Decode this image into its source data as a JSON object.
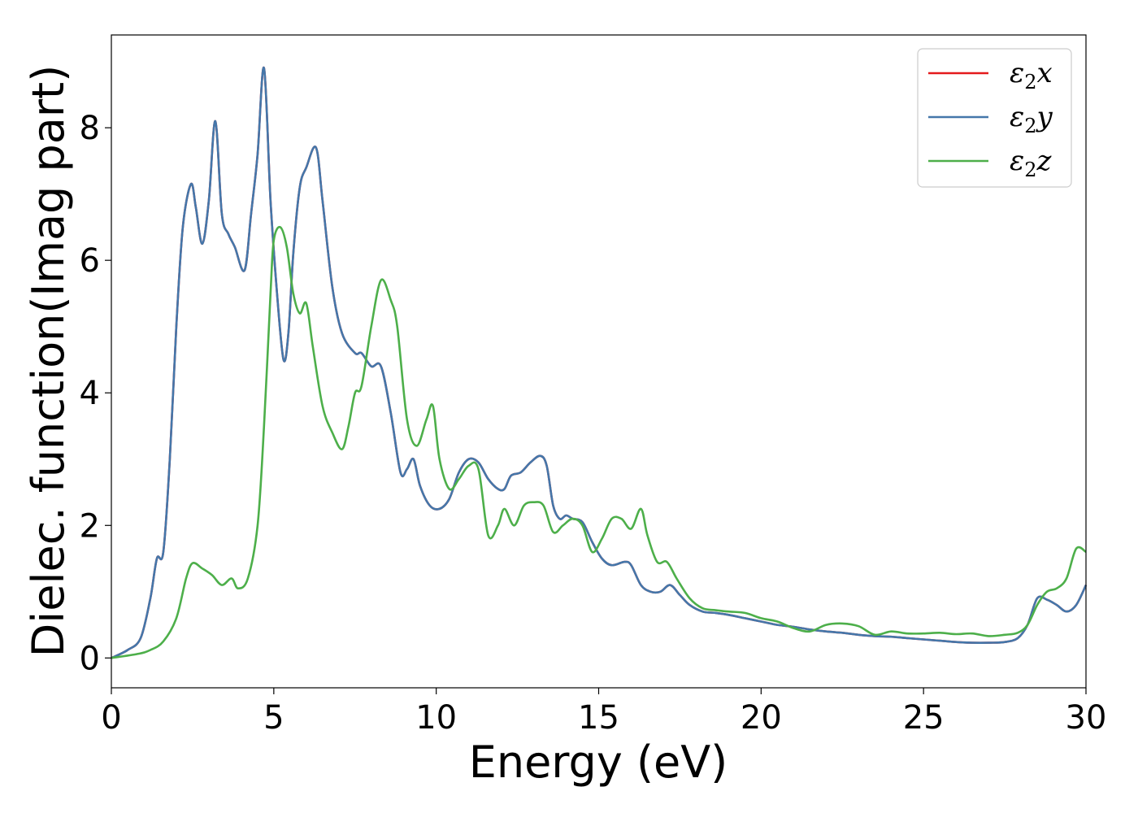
{
  "chart_data": {
    "type": "line",
    "title": "",
    "xlabel": "Energy (eV)",
    "ylabel": "Dielec. function(Imag part)",
    "xlim": [
      0,
      30
    ],
    "ylim": [
      -0.45,
      9.4
    ],
    "xticks": [
      0,
      5,
      10,
      15,
      20,
      25,
      30
    ],
    "yticks": [
      0,
      2,
      4,
      6,
      8
    ],
    "grid": false,
    "legend_position": "top-right",
    "series": [
      {
        "name": "ε2x",
        "sym": "ε",
        "sub": "2",
        "var": "x",
        "color": "#e41a1c",
        "x": [
          0,
          0.5,
          0.9,
          1.2,
          1.4,
          1.6,
          1.8,
          2.0,
          2.2,
          2.45,
          2.6,
          2.8,
          3.0,
          3.2,
          3.4,
          3.6,
          3.8,
          4.1,
          4.3,
          4.5,
          4.7,
          4.9,
          5.1,
          5.3,
          5.45,
          5.6,
          5.8,
          6.0,
          6.3,
          6.5,
          6.8,
          7.1,
          7.5,
          7.7,
          8.0,
          8.3,
          8.6,
          8.9,
          9.1,
          9.3,
          9.5,
          9.8,
          10.1,
          10.4,
          10.7,
          11.0,
          11.3,
          11.6,
          11.9,
          12.1,
          12.3,
          12.6,
          12.9,
          13.2,
          13.4,
          13.6,
          13.8,
          14.0,
          14.2,
          14.5,
          14.8,
          15.1,
          15.4,
          15.8,
          16.0,
          16.3,
          16.6,
          16.9,
          17.2,
          17.5,
          17.8,
          18.2,
          18.6,
          19.0,
          19.5,
          20.0,
          20.5,
          21.0,
          21.5,
          22.0,
          22.5,
          23.0,
          23.5,
          24.0,
          24.5,
          25.0,
          25.5,
          26.0,
          26.5,
          27.0,
          27.5,
          27.9,
          28.2,
          28.5,
          28.8,
          29.1,
          29.4,
          29.7,
          30.0
        ],
        "values": [
          0.0,
          0.12,
          0.3,
          0.9,
          1.5,
          1.6,
          3.0,
          5.0,
          6.5,
          7.15,
          6.8,
          6.25,
          6.9,
          8.1,
          6.7,
          6.4,
          6.2,
          5.85,
          6.7,
          7.6,
          8.9,
          6.9,
          5.5,
          4.5,
          4.9,
          6.1,
          7.1,
          7.4,
          7.7,
          6.9,
          5.6,
          4.9,
          4.6,
          4.6,
          4.4,
          4.4,
          3.7,
          2.8,
          2.85,
          3.0,
          2.6,
          2.3,
          2.25,
          2.4,
          2.8,
          3.0,
          2.95,
          2.7,
          2.55,
          2.55,
          2.75,
          2.8,
          2.95,
          3.05,
          2.9,
          2.3,
          2.1,
          2.15,
          2.1,
          2.05,
          1.75,
          1.5,
          1.4,
          1.45,
          1.4,
          1.1,
          1.0,
          1.0,
          1.1,
          0.95,
          0.8,
          0.7,
          0.68,
          0.65,
          0.6,
          0.55,
          0.5,
          0.47,
          0.43,
          0.4,
          0.38,
          0.35,
          0.33,
          0.32,
          0.3,
          0.28,
          0.26,
          0.24,
          0.23,
          0.23,
          0.24,
          0.3,
          0.5,
          0.9,
          0.88,
          0.8,
          0.7,
          0.8,
          1.1
        ]
      },
      {
        "name": "ε2y",
        "sym": "ε",
        "sub": "2",
        "var": "y",
        "color": "#4477aa",
        "x": [
          0,
          0.5,
          0.9,
          1.2,
          1.4,
          1.6,
          1.8,
          2.0,
          2.2,
          2.45,
          2.6,
          2.8,
          3.0,
          3.2,
          3.4,
          3.6,
          3.8,
          4.1,
          4.3,
          4.5,
          4.7,
          4.9,
          5.1,
          5.3,
          5.45,
          5.6,
          5.8,
          6.0,
          6.3,
          6.5,
          6.8,
          7.1,
          7.5,
          7.7,
          8.0,
          8.3,
          8.6,
          8.9,
          9.1,
          9.3,
          9.5,
          9.8,
          10.1,
          10.4,
          10.7,
          11.0,
          11.3,
          11.6,
          11.9,
          12.1,
          12.3,
          12.6,
          12.9,
          13.2,
          13.4,
          13.6,
          13.8,
          14.0,
          14.2,
          14.5,
          14.8,
          15.1,
          15.4,
          15.8,
          16.0,
          16.3,
          16.6,
          16.9,
          17.2,
          17.5,
          17.8,
          18.2,
          18.6,
          19.0,
          19.5,
          20.0,
          20.5,
          21.0,
          21.5,
          22.0,
          22.5,
          23.0,
          23.5,
          24.0,
          24.5,
          25.0,
          25.5,
          26.0,
          26.5,
          27.0,
          27.5,
          27.9,
          28.2,
          28.5,
          28.8,
          29.1,
          29.4,
          29.7,
          30.0
        ],
        "values": [
          0.0,
          0.12,
          0.3,
          0.9,
          1.5,
          1.6,
          3.0,
          5.0,
          6.5,
          7.15,
          6.8,
          6.25,
          6.9,
          8.1,
          6.7,
          6.4,
          6.2,
          5.85,
          6.7,
          7.6,
          8.9,
          6.9,
          5.5,
          4.5,
          4.9,
          6.1,
          7.1,
          7.4,
          7.7,
          6.9,
          5.6,
          4.9,
          4.6,
          4.6,
          4.4,
          4.4,
          3.7,
          2.8,
          2.85,
          3.0,
          2.6,
          2.3,
          2.25,
          2.4,
          2.8,
          3.0,
          2.95,
          2.7,
          2.55,
          2.55,
          2.75,
          2.8,
          2.95,
          3.05,
          2.9,
          2.3,
          2.1,
          2.15,
          2.1,
          2.05,
          1.75,
          1.5,
          1.4,
          1.45,
          1.4,
          1.1,
          1.0,
          1.0,
          1.1,
          0.95,
          0.8,
          0.7,
          0.68,
          0.65,
          0.6,
          0.55,
          0.5,
          0.47,
          0.43,
          0.4,
          0.38,
          0.35,
          0.33,
          0.32,
          0.3,
          0.28,
          0.26,
          0.24,
          0.23,
          0.23,
          0.24,
          0.3,
          0.5,
          0.9,
          0.88,
          0.8,
          0.7,
          0.8,
          1.1
        ]
      },
      {
        "name": "ε2z",
        "sym": "ε",
        "sub": "2",
        "var": "z",
        "color": "#4daf4a",
        "x": [
          0,
          0.8,
          1.2,
          1.6,
          2.0,
          2.3,
          2.5,
          2.8,
          3.1,
          3.4,
          3.7,
          3.9,
          4.2,
          4.5,
          4.7,
          4.9,
          5.0,
          5.2,
          5.4,
          5.6,
          5.8,
          6.0,
          6.2,
          6.5,
          6.8,
          7.1,
          7.3,
          7.5,
          7.7,
          8.0,
          8.3,
          8.6,
          8.8,
          9.1,
          9.4,
          9.7,
          9.9,
          10.1,
          10.4,
          10.7,
          11.0,
          11.3,
          11.6,
          11.9,
          12.1,
          12.4,
          12.7,
          13.0,
          13.3,
          13.6,
          13.9,
          14.2,
          14.5,
          14.8,
          15.1,
          15.4,
          15.7,
          16.0,
          16.3,
          16.5,
          16.8,
          17.1,
          17.4,
          17.8,
          18.2,
          18.6,
          19.0,
          19.5,
          20.0,
          20.5,
          21.0,
          21.5,
          22.0,
          22.5,
          23.0,
          23.5,
          24.0,
          24.5,
          25.0,
          25.5,
          26.0,
          26.5,
          27.0,
          27.5,
          27.9,
          28.2,
          28.5,
          28.8,
          29.1,
          29.4,
          29.7,
          30.0
        ],
        "values": [
          0.0,
          0.06,
          0.12,
          0.25,
          0.6,
          1.2,
          1.43,
          1.35,
          1.25,
          1.1,
          1.2,
          1.05,
          1.2,
          2.0,
          3.5,
          5.5,
          6.3,
          6.5,
          6.2,
          5.5,
          5.2,
          5.35,
          4.7,
          3.8,
          3.4,
          3.15,
          3.5,
          4.0,
          4.1,
          5.0,
          5.7,
          5.4,
          5.0,
          3.6,
          3.2,
          3.6,
          3.8,
          3.0,
          2.55,
          2.7,
          2.9,
          2.85,
          1.85,
          2.0,
          2.25,
          2.0,
          2.3,
          2.35,
          2.3,
          1.9,
          2.0,
          2.1,
          2.0,
          1.6,
          1.8,
          2.1,
          2.1,
          1.95,
          2.25,
          1.85,
          1.45,
          1.45,
          1.2,
          0.9,
          0.75,
          0.72,
          0.7,
          0.68,
          0.6,
          0.55,
          0.45,
          0.4,
          0.5,
          0.52,
          0.48,
          0.35,
          0.4,
          0.37,
          0.37,
          0.38,
          0.36,
          0.37,
          0.33,
          0.35,
          0.38,
          0.5,
          0.8,
          1.0,
          1.05,
          1.2,
          1.65,
          1.6
        ]
      }
    ]
  }
}
